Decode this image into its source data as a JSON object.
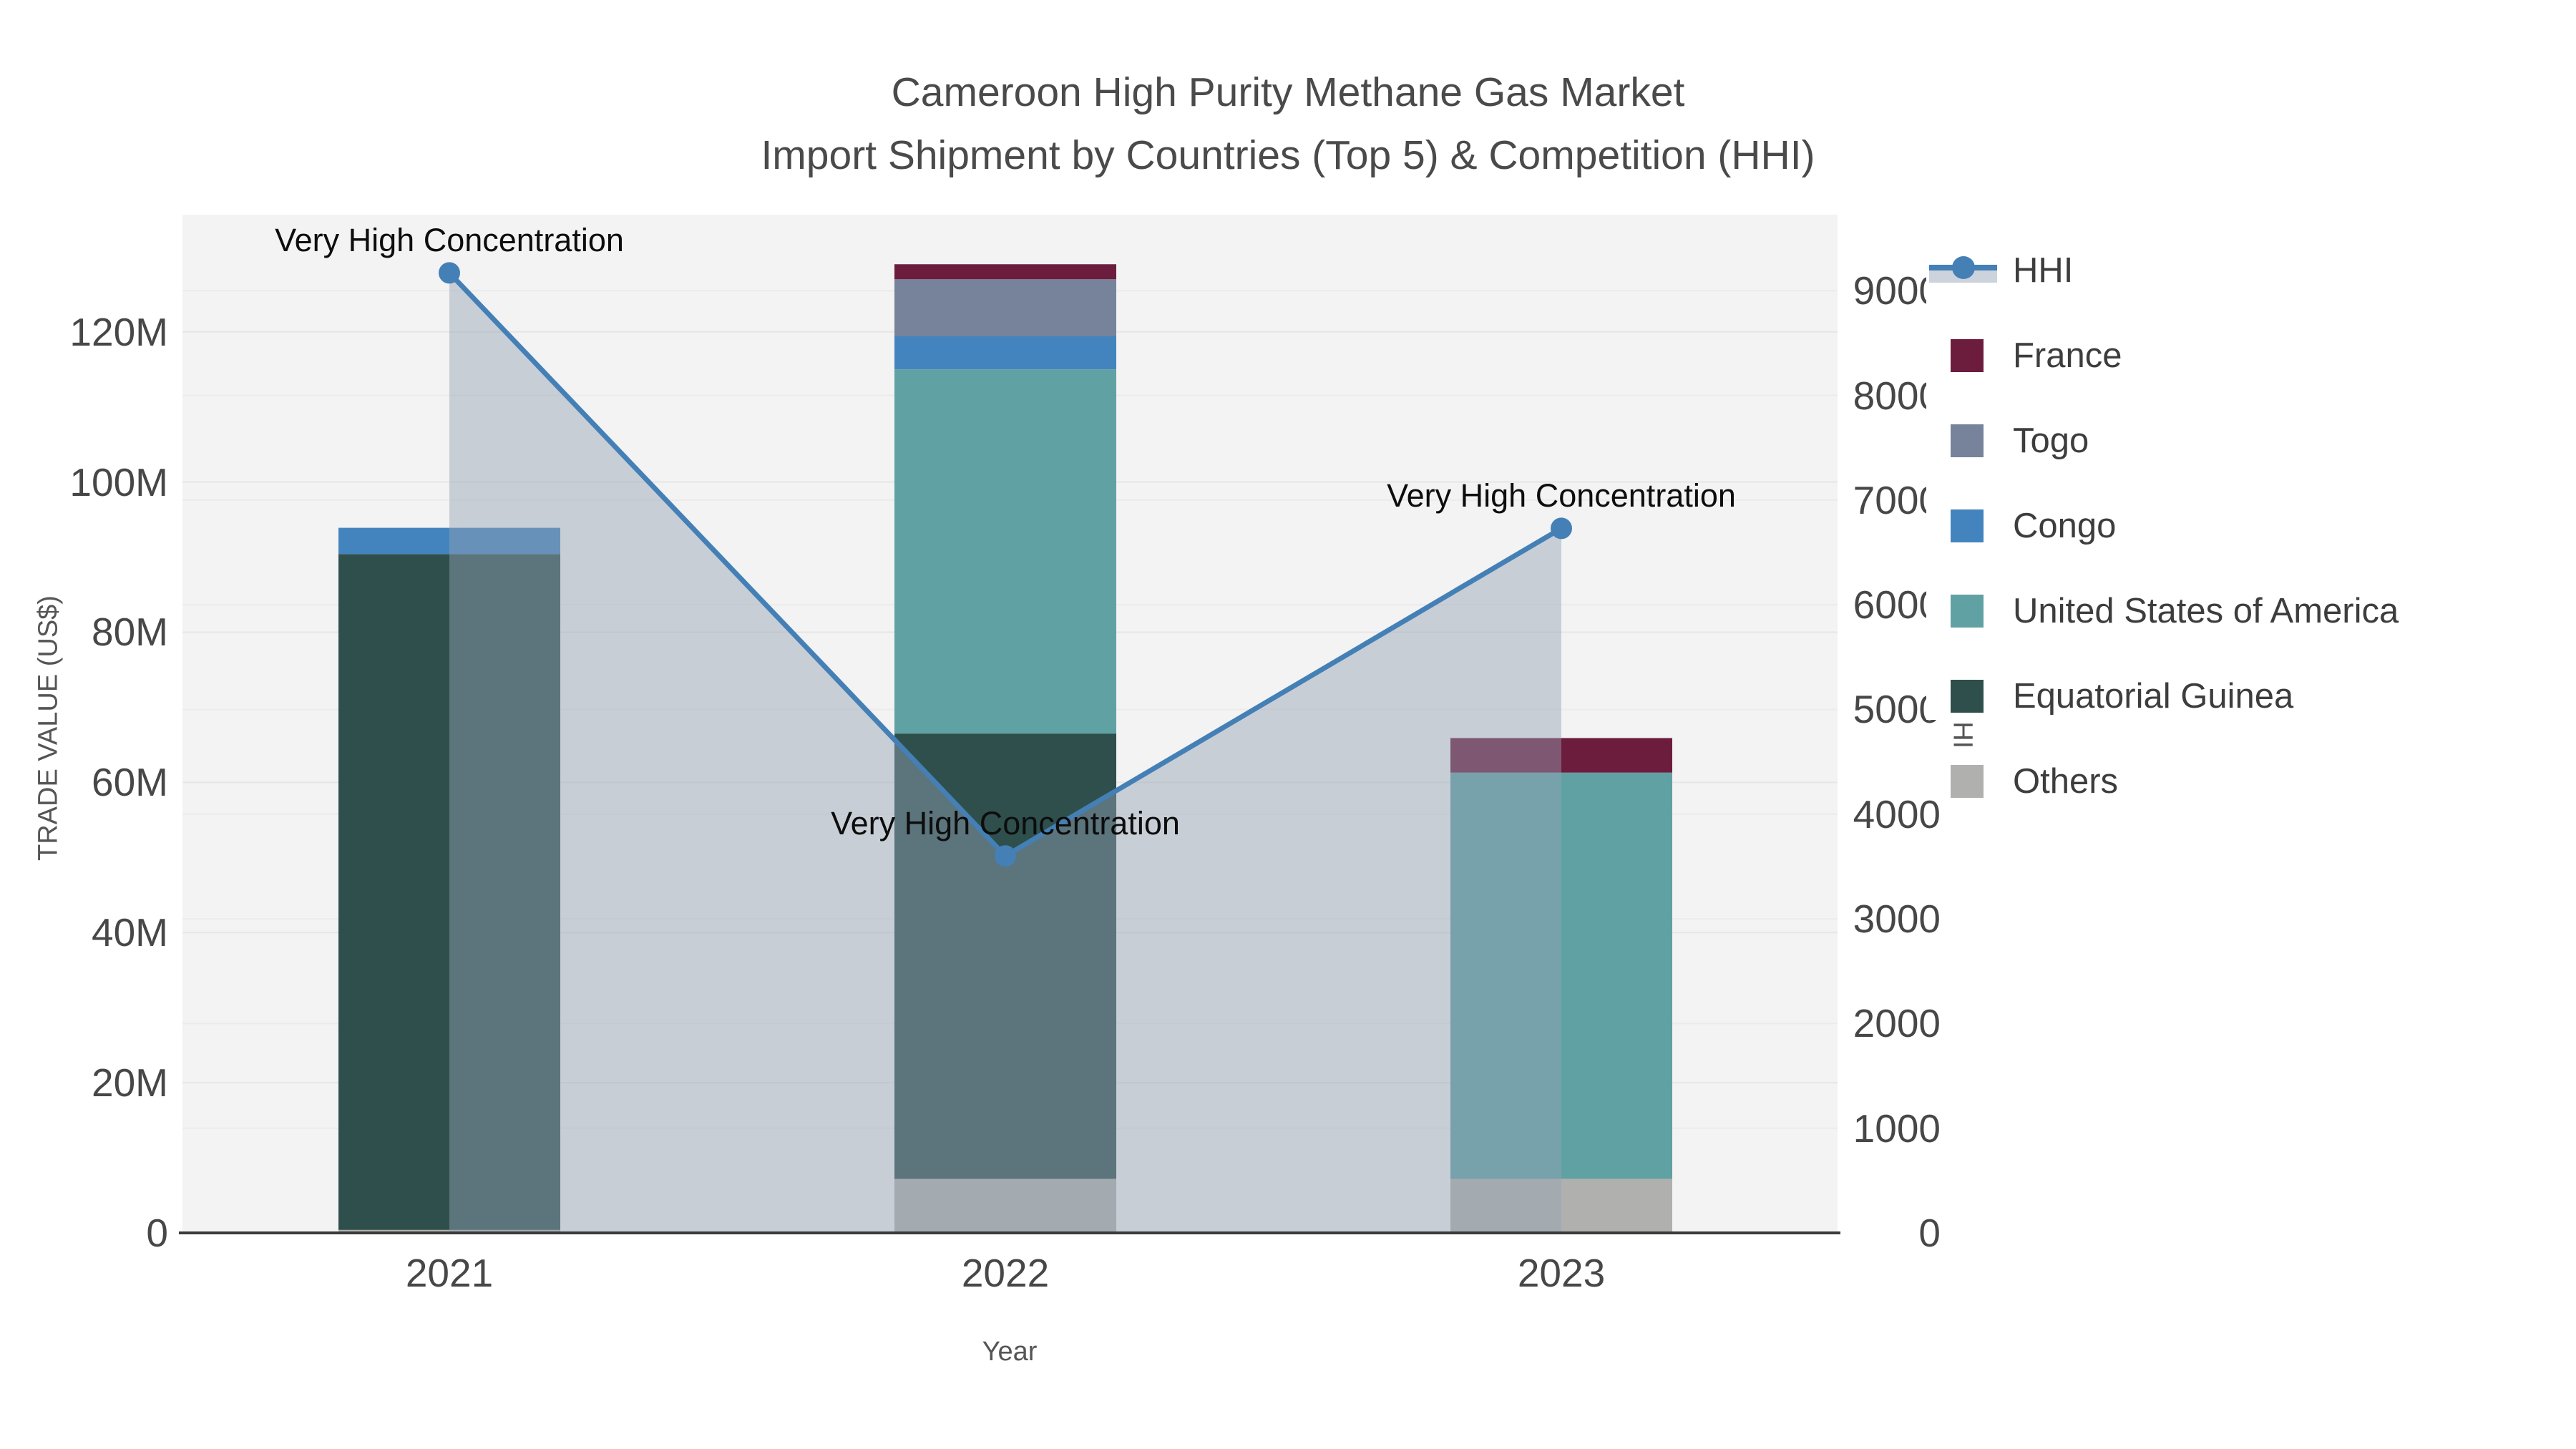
{
  "title": {
    "line1": "Cameroon High Purity Methane Gas Market",
    "line2": "Import Shipment by Countries (Top 5) & Competition (HHI)"
  },
  "axes": {
    "x": {
      "title": "Year",
      "tick_labels": [
        "2021",
        "2022",
        "2023"
      ]
    },
    "y_left": {
      "title": "TRADE VALUE (US$)",
      "tick_labels": [
        "0",
        "20M",
        "40M",
        "60M",
        "80M",
        "100M",
        "120M"
      ],
      "tick_values": [
        0,
        20,
        40,
        60,
        80,
        100,
        120
      ],
      "max_value": 135.6
    },
    "y_right": {
      "title": "HHI",
      "tick_labels": [
        "0",
        "1000",
        "2000",
        "3000",
        "4000",
        "5000",
        "6000",
        "7000",
        "8000",
        "9000"
      ],
      "tick_values": [
        0,
        1000,
        2000,
        3000,
        4000,
        5000,
        6000,
        7000,
        8000,
        9000
      ],
      "max_value": 9726
    }
  },
  "legend": {
    "items": [
      {
        "label": "HHI",
        "type": "line",
        "color": "#4480B6",
        "band_color": "#ccd3dc"
      },
      {
        "label": "France",
        "type": "swatch",
        "color": "#6C1D3D"
      },
      {
        "label": "Togo",
        "type": "swatch",
        "color": "#76839A"
      },
      {
        "label": "Congo",
        "type": "swatch",
        "color": "#4384BE"
      },
      {
        "label": "United States of America",
        "type": "swatch",
        "color": "#60A1A4"
      },
      {
        "label": "Equatorial Guinea",
        "type": "swatch",
        "color": "#2F4F4D"
      },
      {
        "label": "Others",
        "type": "swatch",
        "color": "#B0B1AE"
      }
    ]
  },
  "chart_data": {
    "type": "bar",
    "subtype": "stacked bars with overlaid line+area (dual axis)",
    "categories": [
      "2021",
      "2022",
      "2023"
    ],
    "value_unit": "million US$",
    "series": [
      {
        "name": "Others",
        "color": "#B0B1AE",
        "values": [
          0.4,
          7.2,
          7.2
        ]
      },
      {
        "name": "Equatorial Guinea",
        "color": "#2F4F4D",
        "values": [
          90.0,
          59.3,
          0
        ]
      },
      {
        "name": "United States of America",
        "color": "#60A1A4",
        "values": [
          0,
          48.5,
          54.1
        ]
      },
      {
        "name": "Congo",
        "color": "#4384BE",
        "values": [
          3.5,
          4.4,
          0
        ]
      },
      {
        "name": "Togo",
        "color": "#76839A",
        "values": [
          0,
          7.6,
          0
        ]
      },
      {
        "name": "France",
        "color": "#6C1D3D",
        "values": [
          0,
          2.0,
          4.6
        ]
      }
    ],
    "bar_totals": [
      93.9,
      129.0,
      65.9
    ],
    "line_series": {
      "name": "HHI",
      "color": "#4480B6",
      "area_fill": "rgba(148,161,180,0.45)",
      "values": [
        9170,
        3600,
        6730
      ],
      "axis": "right"
    },
    "annotations": [
      {
        "text": "Very High Concentration",
        "category": "2021"
      },
      {
        "text": "Very High Concentration",
        "category": "2022"
      },
      {
        "text": "Very High Concentration",
        "category": "2023"
      }
    ],
    "title": "Cameroon High Purity Methane Gas Market — Import Shipment by Countries (Top 5) & Competition (HHI)",
    "xlabel": "Year",
    "ylabel_left": "TRADE VALUE (US$)",
    "ylabel_right": "HHI",
    "ylim_left": [
      0,
      135.6
    ],
    "ylim_right": [
      0,
      9726
    ],
    "grid": true,
    "legend_position": "right"
  }
}
